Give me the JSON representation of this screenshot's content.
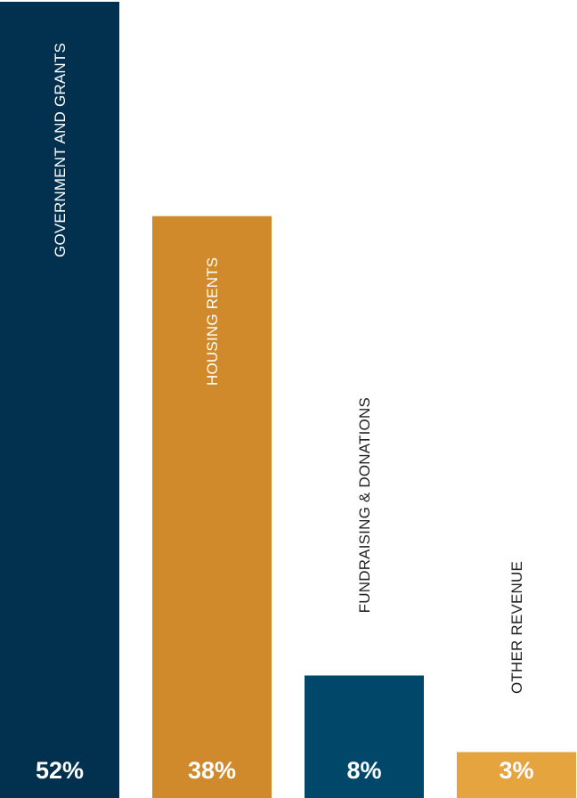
{
  "chart_data": {
    "type": "bar",
    "categories": [
      "GOVERNMENT AND GRANTS",
      "HOUSING RENTS",
      "FUNDRAISING & DONATIONS",
      "OTHER REVENUE"
    ],
    "values": [
      52,
      38,
      8,
      3
    ],
    "value_labels": [
      "52%",
      "38%",
      "8%",
      "3%"
    ],
    "bar_colors": [
      "#01314f",
      "#d18a2b",
      "#014769",
      "#e6a43e"
    ],
    "category_label_colors": [
      "#ffffff",
      "#ffffff",
      "#222222",
      "#222222"
    ],
    "value_label_color": "#ffffff",
    "ylim": [
      0,
      52
    ],
    "category_label_orientation": "vertical",
    "grid": false,
    "legend": "none"
  }
}
